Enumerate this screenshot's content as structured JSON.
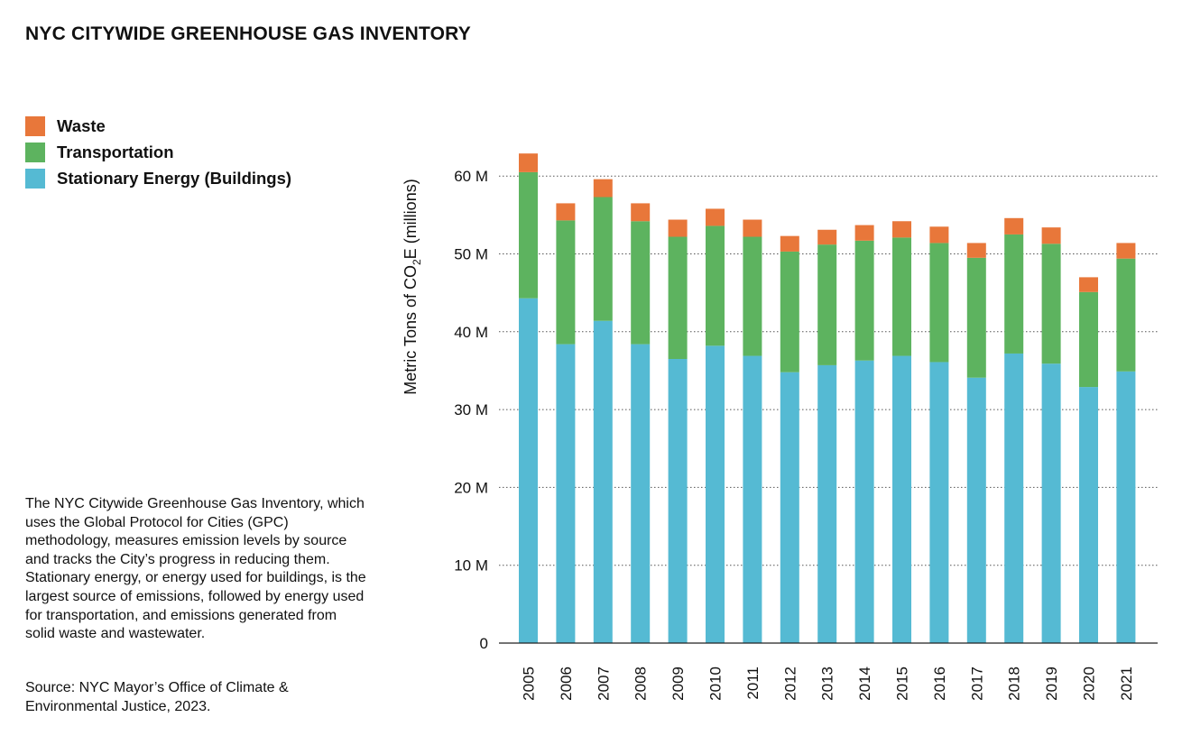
{
  "title": "NYC CITYWIDE GREENHOUSE GAS INVENTORY",
  "legend": [
    {
      "label": "Waste",
      "color": "#E8773A"
    },
    {
      "label": "Transportation",
      "color": "#5DB35F"
    },
    {
      "label": "Stationary Energy (Buildings)",
      "color": "#55BAD3"
    }
  ],
  "description": "The NYC Citywide Greenhouse Gas Inventory, which uses the Global Protocol for Cities (GPC) methodology, measures emission levels by source and tracks the City’s progress in reducing them. Stationary energy, or energy used for buildings, is the largest source of emissions, followed by energy used for transportation, and emissions generated from solid waste and wastewater.",
  "source": "Source: NYC Mayor’s Office of Climate & Environmental Justice, 2023.",
  "chart_data": {
    "type": "bar",
    "stacked": true,
    "categories": [
      "2005",
      "2006",
      "2007",
      "2008",
      "2009",
      "2010",
      "2011",
      "2012",
      "2013",
      "2014",
      "2015",
      "2016",
      "2017",
      "2018",
      "2019",
      "2020",
      "2021"
    ],
    "series": [
      {
        "name": "Stationary Energy (Buildings)",
        "color": "#55BAD3",
        "values": [
          44.3,
          38.4,
          41.4,
          38.4,
          36.5,
          38.2,
          36.9,
          34.8,
          35.7,
          36.3,
          36.9,
          36.1,
          34.1,
          37.2,
          35.9,
          32.9,
          34.9
        ]
      },
      {
        "name": "Transportation",
        "color": "#5DB35F",
        "values": [
          16.2,
          15.9,
          15.9,
          15.8,
          15.7,
          15.4,
          15.3,
          15.5,
          15.5,
          15.4,
          15.2,
          15.3,
          15.4,
          15.3,
          15.4,
          12.2,
          14.5
        ]
      },
      {
        "name": "Waste",
        "color": "#E8773A",
        "values": [
          2.4,
          2.2,
          2.3,
          2.3,
          2.2,
          2.2,
          2.2,
          2.0,
          1.9,
          2.0,
          2.1,
          2.1,
          1.9,
          2.1,
          2.1,
          1.9,
          2.0
        ]
      }
    ],
    "ylabel_prefix": "Metric Tons of CO",
    "ylabel_subscript": "2",
    "ylabel_suffix": "E (millions)",
    "yticks": [
      {
        "value": 0,
        "label": "0"
      },
      {
        "value": 10,
        "label": "10 M"
      },
      {
        "value": 20,
        "label": "20 M"
      },
      {
        "value": 30,
        "label": "30 M"
      },
      {
        "value": 40,
        "label": "40 M"
      },
      {
        "value": 50,
        "label": "50 M"
      },
      {
        "value": 60,
        "label": "60 M"
      }
    ],
    "ylim": [
      0,
      60
    ],
    "grid": "dotted horizontal"
  }
}
